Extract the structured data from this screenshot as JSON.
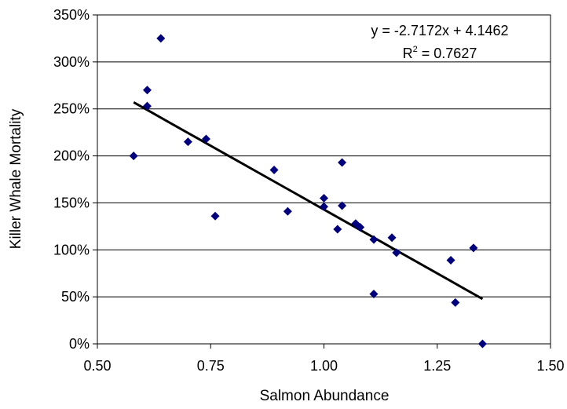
{
  "chart_data": {
    "type": "scatter",
    "xlabel": "Salmon Abundance",
    "ylabel": "Killer Whale Mortality",
    "xlim": [
      0.5,
      1.5
    ],
    "ylim": [
      0,
      3.5
    ],
    "x_ticks": [
      "0.50",
      "0.75",
      "1.00",
      "1.25",
      "1.50"
    ],
    "y_ticks": [
      "0%",
      "50%",
      "100%",
      "150%",
      "200%",
      "250%",
      "300%",
      "350%"
    ],
    "grid": "horizontal",
    "marker_color": "#00007f",
    "trendline": {
      "slope": -2.7172,
      "intercept": 4.1462,
      "x_range": [
        0.58,
        1.35
      ],
      "color": "#000000"
    },
    "annotations": {
      "equation": "y = -2.7172x + 4.1462",
      "r2_prefix": "R",
      "r2_sup": "2",
      "r2_value": " = 0.7627"
    },
    "points": [
      {
        "x": 0.58,
        "y": 2.0
      },
      {
        "x": 0.61,
        "y": 2.7
      },
      {
        "x": 0.61,
        "y": 2.53
      },
      {
        "x": 0.64,
        "y": 3.25
      },
      {
        "x": 0.7,
        "y": 2.15
      },
      {
        "x": 0.74,
        "y": 2.18
      },
      {
        "x": 0.76,
        "y": 1.36
      },
      {
        "x": 0.89,
        "y": 1.85
      },
      {
        "x": 0.92,
        "y": 1.41
      },
      {
        "x": 1.0,
        "y": 1.46
      },
      {
        "x": 1.0,
        "y": 1.55
      },
      {
        "x": 1.03,
        "y": 1.22
      },
      {
        "x": 1.04,
        "y": 1.93
      },
      {
        "x": 1.04,
        "y": 1.47
      },
      {
        "x": 1.07,
        "y": 1.28
      },
      {
        "x": 1.08,
        "y": 1.24
      },
      {
        "x": 1.11,
        "y": 1.11
      },
      {
        "x": 1.11,
        "y": 0.53
      },
      {
        "x": 1.15,
        "y": 1.13
      },
      {
        "x": 1.16,
        "y": 0.97
      },
      {
        "x": 1.28,
        "y": 0.89
      },
      {
        "x": 1.29,
        "y": 0.44
      },
      {
        "x": 1.33,
        "y": 1.02
      },
      {
        "x": 1.35,
        "y": 0.0
      }
    ]
  }
}
